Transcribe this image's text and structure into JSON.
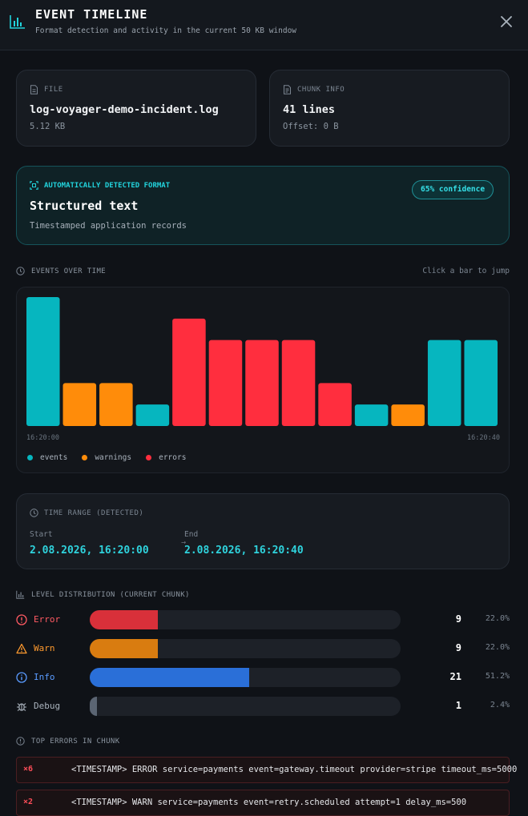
{
  "header": {
    "title": "EVENT TIMELINE",
    "subtitle": "Format detection and activity in the current 50 KB window"
  },
  "file": {
    "label": "FILE",
    "name": "log-voyager-demo-incident.log",
    "size": "5.12 KB"
  },
  "chunk": {
    "label": "CHUNK INFO",
    "lines": "41 lines",
    "offset": "Offset: 0 B"
  },
  "format": {
    "label": "AUTOMATICALLY DETECTED FORMAT",
    "name": "Structured text",
    "description": "Timestamped application records",
    "confidence": "65% confidence"
  },
  "events_section": {
    "label": "EVENTS OVER TIME",
    "hint": "Click a bar to jump"
  },
  "chart_data": {
    "type": "bar",
    "x_start_label": "16:20:00",
    "x_end_label": "16:20:40",
    "ylim": [
      0,
      6
    ],
    "bars": [
      {
        "value": 6,
        "kind": "events"
      },
      {
        "value": 2,
        "kind": "warnings"
      },
      {
        "value": 2,
        "kind": "warnings"
      },
      {
        "value": 1,
        "kind": "events"
      },
      {
        "value": 5,
        "kind": "errors"
      },
      {
        "value": 4,
        "kind": "errors"
      },
      {
        "value": 4,
        "kind": "errors"
      },
      {
        "value": 4,
        "kind": "errors"
      },
      {
        "value": 2,
        "kind": "errors"
      },
      {
        "value": 1,
        "kind": "events"
      },
      {
        "value": 1,
        "kind": "warnings"
      },
      {
        "value": 4,
        "kind": "events"
      },
      {
        "value": 4,
        "kind": "events"
      }
    ],
    "legend": [
      {
        "kind": "events",
        "label": "events",
        "color": "#06b6bf"
      },
      {
        "kind": "warnings",
        "label": "warnings",
        "color": "#ff8c0a"
      },
      {
        "kind": "errors",
        "label": "errors",
        "color": "#ff2e3e"
      }
    ]
  },
  "time_range": {
    "label": "TIME RANGE (DETECTED)",
    "start_label": "Start",
    "start_value": "2.08.2026, 16:20:00",
    "arrow": "→",
    "end_label": "End",
    "end_value": "2.08.2026, 16:20:40"
  },
  "levels": {
    "label": "LEVEL DISTRIBUTION (CURRENT CHUNK)",
    "items": [
      {
        "name": "Error",
        "count": "9",
        "pct": "22.0%",
        "fraction": 0.22,
        "color": "#d8303a",
        "text_color": "#ff5a63"
      },
      {
        "name": "Warn",
        "count": "9",
        "pct": "22.0%",
        "fraction": 0.22,
        "color": "#d97c10",
        "text_color": "#ff9a2e"
      },
      {
        "name": "Info",
        "count": "21",
        "pct": "51.2%",
        "fraction": 0.512,
        "color": "#2a6fd8",
        "text_color": "#5a9bff"
      },
      {
        "name": "Debug",
        "count": "1",
        "pct": "2.4%",
        "fraction": 0.024,
        "color": "#5b6573",
        "text_color": "#aab3bd"
      }
    ]
  },
  "top_errors": {
    "label": "TOP ERRORS IN CHUNK",
    "items": [
      {
        "count": "×6",
        "text": "<TIMESTAMP> ERROR service=payments event=gateway.timeout provider=stripe timeout_ms=5000"
      },
      {
        "count": "×2",
        "text": "<TIMESTAMP> WARN service=payments event=retry.scheduled attempt=1 delay_ms=500"
      }
    ]
  }
}
